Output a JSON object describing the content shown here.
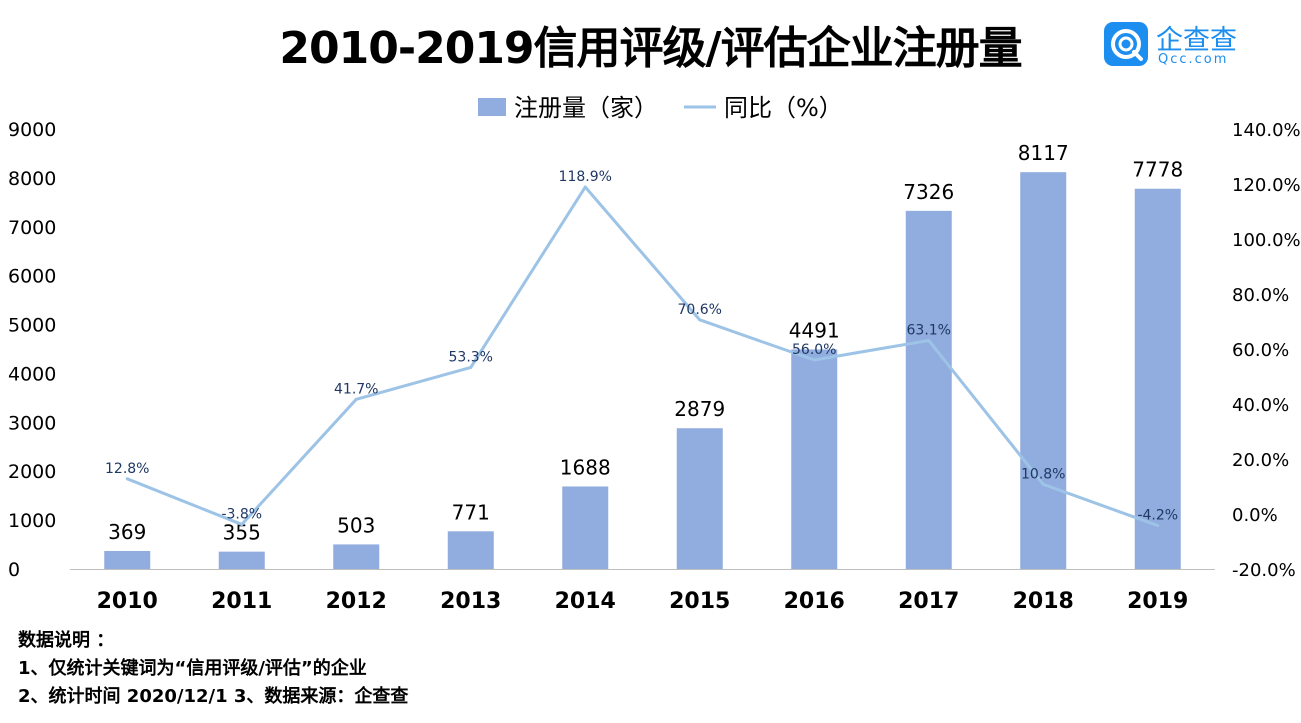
{
  "title": "2010-2019信用评级/评估企业注册量",
  "logo": {
    "main": "企查查",
    "sub": "Qcc.com",
    "icon": "qcc-logo-icon"
  },
  "colors": {
    "bar": "#91ACDE",
    "line": "#9DC3E6",
    "axis": "#BFBFBF",
    "line_label": "#1F3864",
    "logo": "#1C8EF0"
  },
  "chart_data": {
    "type": "bar+line",
    "categories": [
      "2010",
      "2011",
      "2012",
      "2013",
      "2014",
      "2015",
      "2016",
      "2017",
      "2018",
      "2019"
    ],
    "series": [
      {
        "name": "注册量（家）",
        "type": "bar",
        "axis": "left",
        "values": [
          369,
          355,
          503,
          771,
          1688,
          2879,
          4491,
          7326,
          8117,
          7778
        ],
        "labels": [
          "369",
          "355",
          "503",
          "771",
          "1688",
          "2879",
          "4491",
          "7326",
          "8117",
          "7778"
        ]
      },
      {
        "name": "同比（%）",
        "type": "line",
        "axis": "right",
        "values": [
          12.8,
          -3.8,
          41.7,
          53.3,
          118.9,
          70.6,
          56.0,
          63.1,
          10.8,
          -4.2
        ],
        "labels": [
          "12.8%",
          "-3.8%",
          "41.7%",
          "53.3%",
          "118.9%",
          "70.6%",
          "56.0%",
          "63.1%",
          "10.8%",
          "-4.2%"
        ]
      }
    ],
    "y_left": {
      "min": 0,
      "max": 9000,
      "ticks": [
        "0",
        "1000",
        "2000",
        "3000",
        "4000",
        "5000",
        "6000",
        "7000",
        "8000",
        "9000"
      ]
    },
    "y_right": {
      "min": -20,
      "max": 140,
      "ticks": [
        "-20.0%",
        "0.0%",
        "20.0%",
        "40.0%",
        "60.0%",
        "80.0%",
        "100.0%",
        "120.0%",
        "140.0%"
      ]
    },
    "legend": {
      "position": "top-center",
      "items": [
        "注册量（家）",
        "同比（%）"
      ]
    },
    "grid": false
  },
  "notes": {
    "heading": "数据说明 ：",
    "line1": "1、仅统计关键词为“信用评级/评估”的企业",
    "line2": "2、统计时间 2020/12/1   3、数据来源：企查查"
  }
}
